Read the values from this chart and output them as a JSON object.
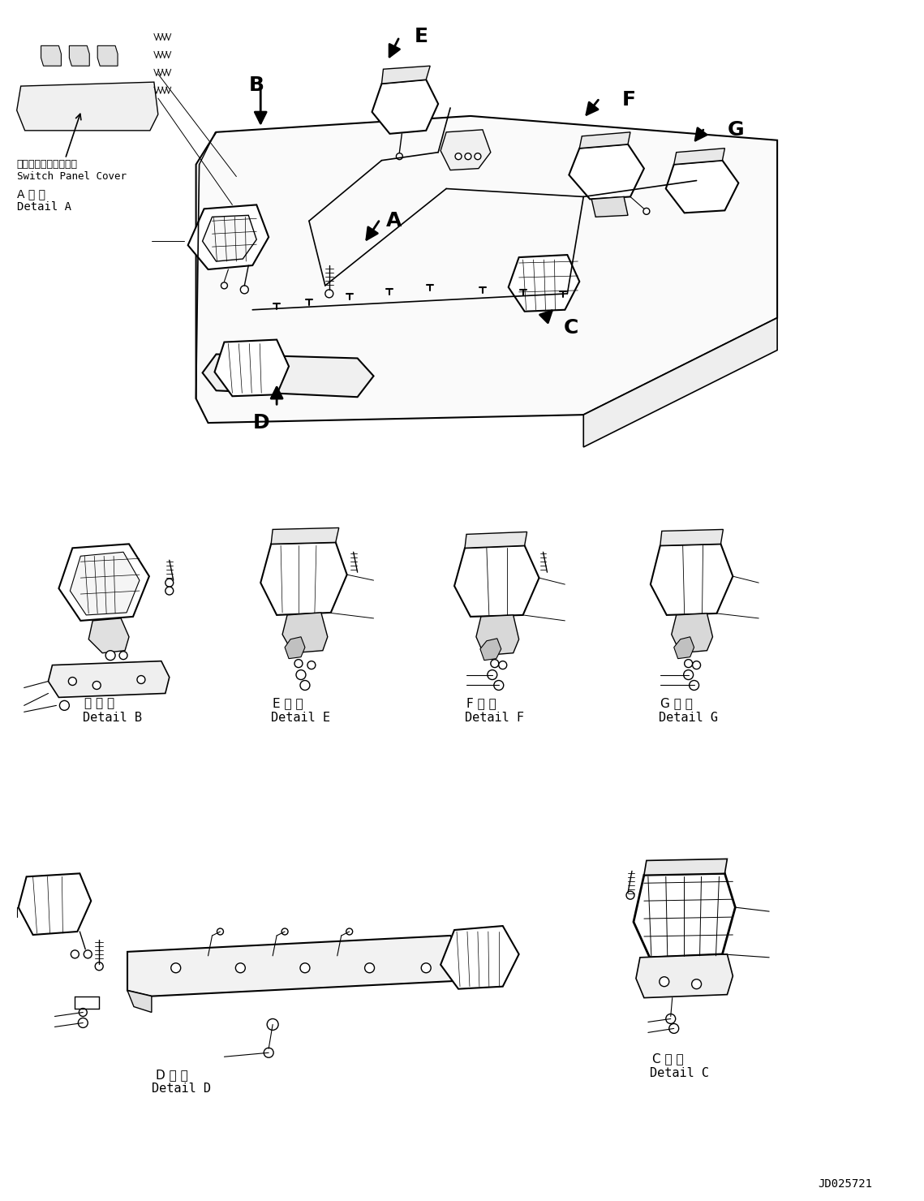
{
  "background_color": "#ffffff",
  "watermark": "JD025721",
  "line_color": "#000000",
  "text_color": "#000000",
  "labels": {
    "switch_panel_jp": "スイッチパネルカバー",
    "switch_panel_en": "Switch Panel Cover",
    "detail_a_jp": "A 詳 細",
    "detail_a_en": "Detail A",
    "detail_b_jp": "日 詳 細",
    "detail_b_en": "Detail B",
    "detail_c_jp": "C 詳 細",
    "detail_c_en": "Detail C",
    "detail_d_jp": "D 詳 細",
    "detail_d_en": "Detail D",
    "detail_e_jp": "E 詳 細",
    "detail_e_en": "Detail E",
    "detail_f_jp": "F 詳 細",
    "detail_f_en": "Detail F",
    "detail_g_jp": "G 詳 細",
    "detail_g_en": "Detail G"
  }
}
